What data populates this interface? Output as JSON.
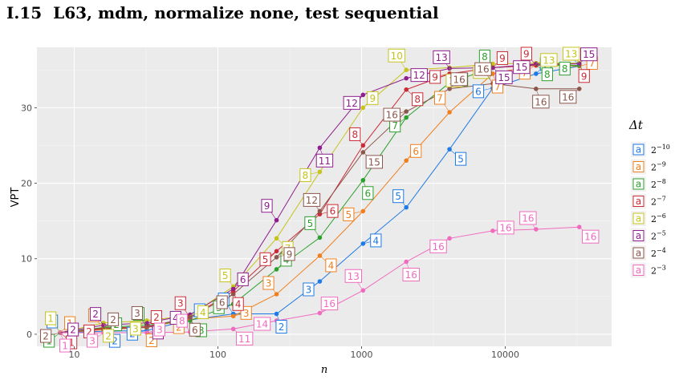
{
  "heading": {
    "number": "I.15",
    "text": "L63, mdm, normalize none, test sequential"
  },
  "chart_data": {
    "type": "line",
    "title": "",
    "xlabel": "n",
    "ylabel": "VPT",
    "x_scale": "log10",
    "xlim": [
      5.5,
      55000
    ],
    "ylim": [
      -1.6,
      38
    ],
    "x_ticks": [
      10,
      100,
      1000,
      10000
    ],
    "x_tick_labels": [
      "10",
      "100",
      "1000",
      "10000"
    ],
    "y_ticks": [
      0,
      10,
      20,
      30
    ],
    "y_tick_labels": [
      "0",
      "10",
      "20",
      "30"
    ],
    "grid": true,
    "legend_title": "Δt",
    "legend_position": "right",
    "x": [
      8,
      16,
      32,
      64,
      128,
      256,
      512,
      1024,
      2048,
      4096,
      8192,
      16384,
      32768
    ],
    "series": [
      {
        "name": "2^-10",
        "base": "2",
        "exp": "−10",
        "color": "#1e7ae6",
        "values": [
          0.2,
          0.4,
          0.5,
          1.9,
          2.7,
          2.7,
          7.0,
          12.0,
          16.8,
          24.5,
          32.6,
          34.5,
          35.5
        ],
        "labels": [
          "1",
          "2",
          "2",
          "2",
          "2",
          "2",
          "3",
          "4",
          "5",
          "5",
          "6",
          "7",
          "7"
        ]
      },
      {
        "name": "2^-9",
        "base": "2",
        "exp": "−9",
        "color": "#f07f1e",
        "values": [
          0.2,
          0.6,
          0.9,
          2.0,
          2.4,
          5.3,
          10.4,
          16.3,
          23.0,
          29.4,
          34.5,
          35.7,
          35.5
        ],
        "labels": [
          "1",
          "2",
          "2",
          "2",
          "3",
          "3",
          "4",
          "5",
          "6",
          "7",
          "7",
          "7",
          "7"
        ]
      },
      {
        "name": "2^-8",
        "base": "2",
        "exp": "−8",
        "color": "#2ca02c",
        "values": [
          0.2,
          0.9,
          1.2,
          1.8,
          4.0,
          8.6,
          12.8,
          20.4,
          28.7,
          33.3,
          35.3,
          35.7,
          35.6
        ],
        "labels": [
          "1",
          "2",
          "2",
          "3",
          "3",
          "4",
          "5",
          "6",
          "7",
          "8",
          "8",
          "8",
          "8"
        ]
      },
      {
        "name": "2^-7",
        "base": "2",
        "exp": "−7",
        "color": "#cc2a36",
        "values": [
          0.2,
          0.8,
          1.0,
          2.2,
          5.7,
          11.0,
          15.9,
          25.0,
          32.4,
          34.5,
          35.3,
          35.6,
          35.9
        ],
        "labels": [
          "1",
          "2",
          "2",
          "3",
          "4",
          "5",
          "6",
          "8",
          "8",
          "9",
          "9",
          "9",
          "9"
        ]
      },
      {
        "name": "2^-6",
        "base": "2",
        "exp": "−6",
        "color": "#c5c41c",
        "values": [
          0.2,
          1.5,
          1.8,
          2.5,
          6.3,
          12.7,
          21.5,
          30.0,
          35.0,
          35.3,
          35.8,
          35.9,
          35.9
        ],
        "labels": [
          "1",
          "2",
          "3",
          "4",
          "5",
          "7",
          "8",
          "9",
          "10",
          "10",
          "11",
          "13",
          "13"
        ]
      },
      {
        "name": "2^-5",
        "base": "2",
        "exp": "−5",
        "color": "#8f1e8f",
        "values": [
          0.2,
          1.2,
          1.5,
          2.6,
          6.0,
          15.1,
          24.7,
          31.7,
          33.9,
          35.2,
          35.3,
          35.8,
          35.8
        ],
        "labels": [
          "2",
          "2",
          "3",
          "4",
          "6",
          "9",
          "11",
          "12",
          "12",
          "13",
          "15",
          "15",
          "15"
        ]
      },
      {
        "name": "2^-4",
        "base": "2",
        "exp": "−4",
        "color": "#8c564b",
        "values": [
          0.2,
          0.7,
          0.9,
          2.3,
          5.3,
          10.2,
          16.3,
          24.1,
          29.5,
          32.5,
          33.2,
          32.5,
          32.5
        ],
        "labels": [
          "2",
          "2",
          "3",
          "6",
          "6",
          "9",
          "12",
          "15",
          "16",
          "16",
          "16",
          "16",
          "16"
        ]
      },
      {
        "name": "2^-3",
        "base": "2",
        "exp": "−3",
        "color": "#f06bbf",
        "values": [
          0.2,
          0.2,
          0.2,
          0.3,
          0.7,
          1.8,
          2.8,
          5.8,
          9.6,
          12.7,
          13.7,
          13.9,
          14.2
        ],
        "labels": [
          "1",
          "3",
          "3",
          "8",
          "11",
          "14",
          "16",
          "13",
          "16",
          "16",
          "16",
          "16",
          "16"
        ]
      }
    ]
  }
}
